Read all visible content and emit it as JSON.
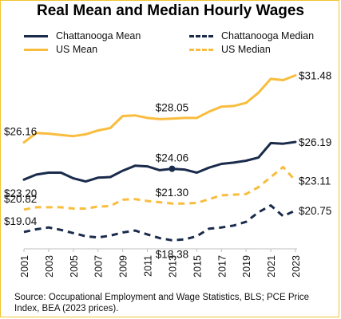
{
  "title": "Real Mean and Median Hourly Wages",
  "legend": [
    {
      "label": "Chattanooga Mean",
      "color": "#1a2b4c",
      "style": "solid"
    },
    {
      "label": "Chattanooga Median",
      "color": "#1a2b4c",
      "style": "dashed"
    },
    {
      "label": "US Mean",
      "color": "#f9bd3d",
      "style": "solid"
    },
    {
      "label": "US Median",
      "color": "#f9bd3d",
      "style": "dashed"
    }
  ],
  "source": "Source: Occupational Employment and Wage Statistics, BLS; PCE Price Index, BEA (2023 prices).",
  "chart_data": {
    "type": "line",
    "title": "Real Mean and Median Hourly Wages",
    "xlabel": "",
    "ylabel": "",
    "x_tick_labels": [
      "2001",
      "2003",
      "2005",
      "2007",
      "2009",
      "2011",
      "2013",
      "2015",
      "2017",
      "2019",
      "2021",
      "2023"
    ],
    "x": [
      2001,
      2002,
      2003,
      2004,
      2005,
      2006,
      2007,
      2008,
      2009,
      2010,
      2011,
      2012,
      2013,
      2014,
      2015,
      2016,
      2017,
      2018,
      2019,
      2020,
      2021,
      2022,
      2023
    ],
    "ylim": [
      17.7,
      32.4
    ],
    "grid": false,
    "legend_position": "top",
    "series": [
      {
        "name": "US Mean",
        "color": "#f9bd3d",
        "style": "solid",
        "values": [
          26.16,
          26.9,
          26.85,
          26.75,
          26.65,
          26.8,
          27.1,
          27.3,
          28.25,
          28.3,
          28.1,
          28.0,
          28.05,
          28.1,
          28.1,
          28.6,
          29.0,
          29.05,
          29.3,
          30.1,
          31.2,
          31.1,
          31.48
        ]
      },
      {
        "name": "Chattanooga Mean",
        "color": "#1a2b4c",
        "style": "solid",
        "values": [
          23.2,
          23.6,
          23.75,
          23.75,
          23.3,
          23.05,
          23.35,
          23.4,
          23.9,
          24.3,
          24.25,
          23.95,
          24.06,
          24.0,
          23.75,
          24.15,
          24.45,
          24.55,
          24.7,
          24.95,
          26.1,
          26.05,
          26.19
        ]
      },
      {
        "name": "US Median",
        "color": "#f9bd3d",
        "style": "dashed",
        "values": [
          20.82,
          21.0,
          21.0,
          21.0,
          20.9,
          20.9,
          21.05,
          21.1,
          21.6,
          21.65,
          21.5,
          21.4,
          21.3,
          21.3,
          21.35,
          21.65,
          21.95,
          22.0,
          22.05,
          22.6,
          23.4,
          24.2,
          23.11
        ]
      },
      {
        "name": "Chattanooga Median",
        "color": "#1a2b4c",
        "style": "dashed",
        "values": [
          19.04,
          19.25,
          19.4,
          19.2,
          18.95,
          18.7,
          18.6,
          18.75,
          19.0,
          19.15,
          18.85,
          18.55,
          18.38,
          18.45,
          18.7,
          19.3,
          19.4,
          19.55,
          19.85,
          20.6,
          21.15,
          20.3,
          20.75
        ]
      }
    ],
    "data_labels": [
      {
        "series": "US Mean",
        "x": 2001,
        "text": "$26.16",
        "anchor": "left-edge-above"
      },
      {
        "series": "US Mean",
        "x": 2013,
        "text": "$28.05",
        "anchor": "above"
      },
      {
        "series": "US Mean",
        "x": 2023,
        "text": "$31.48",
        "anchor": "right"
      },
      {
        "series": "Chattanooga Mean",
        "x": 2001,
        "text": "$23.20",
        "anchor": "left-edge-below"
      },
      {
        "series": "Chattanooga Mean",
        "x": 2013,
        "text": "$24.06",
        "anchor": "above"
      },
      {
        "series": "Chattanooga Mean",
        "x": 2023,
        "text": "$26.19",
        "anchor": "right"
      },
      {
        "series": "US Median",
        "x": 2001,
        "text": "$20.82",
        "anchor": "left-edge-above"
      },
      {
        "series": "US Median",
        "x": 2013,
        "text": "$21.30",
        "anchor": "above"
      },
      {
        "series": "US Median",
        "x": 2023,
        "text": "$23.11",
        "anchor": "right"
      },
      {
        "series": "Chattanooga Median",
        "x": 2001,
        "text": "$19.04",
        "anchor": "left-edge-above"
      },
      {
        "series": "Chattanooga Median",
        "x": 2013,
        "text": "$18.38",
        "anchor": "below"
      },
      {
        "series": "Chattanooga Median",
        "x": 2023,
        "text": "$20.75",
        "anchor": "right"
      }
    ]
  }
}
